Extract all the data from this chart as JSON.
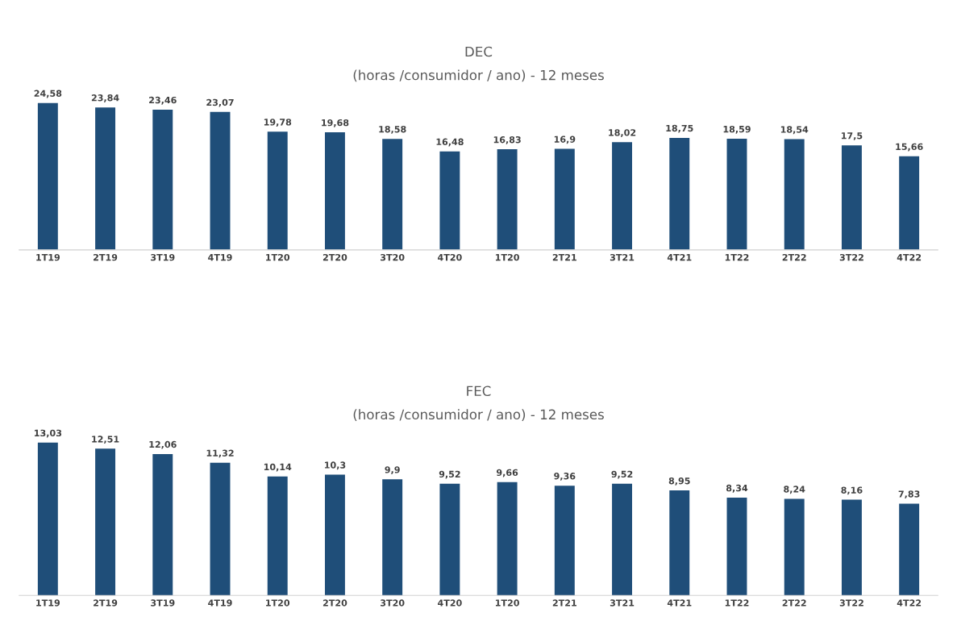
{
  "chart_data": [
    {
      "type": "bar",
      "title": "DEC",
      "subtitle": "(horas /consumidor / ano) - 12 meses",
      "categories": [
        "1T19",
        "2T19",
        "3T19",
        "4T19",
        "1T20",
        "2T20",
        "3T20",
        "4T20",
        "1T20",
        "2T21",
        "3T21",
        "4T21",
        "1T22",
        "2T22",
        "3T22",
        "4T22"
      ],
      "values": [
        24.58,
        23.84,
        23.46,
        23.07,
        19.78,
        19.68,
        18.58,
        16.48,
        16.83,
        16.9,
        18.02,
        18.75,
        18.59,
        18.54,
        17.5,
        15.66
      ],
      "value_labels": [
        "24,58",
        "23,84",
        "23,46",
        "23,07",
        "19,78",
        "19,68",
        "18,58",
        "16,48",
        "16,83",
        "16,9",
        "18,02",
        "18,75",
        "18,59",
        "18,54",
        "17,5",
        "15,66"
      ],
      "color": "#1f4e79",
      "tick_labels": "x",
      "grid": false,
      "legend": false
    },
    {
      "type": "bar",
      "title": "FEC",
      "subtitle": "(horas /consumidor / ano) - 12 meses",
      "categories": [
        "1T19",
        "2T19",
        "3T19",
        "4T19",
        "1T20",
        "2T20",
        "3T20",
        "4T20",
        "1T20",
        "2T21",
        "3T21",
        "4T21",
        "1T22",
        "2T22",
        "3T22",
        "4T22"
      ],
      "values": [
        13.03,
        12.51,
        12.06,
        11.32,
        10.14,
        10.3,
        9.9,
        9.52,
        9.66,
        9.36,
        9.52,
        8.95,
        8.34,
        8.24,
        8.16,
        7.83
      ],
      "value_labels": [
        "13,03",
        "12,51",
        "12,06",
        "11,32",
        "10,14",
        "10,3",
        "9,9",
        "9,52",
        "9,66",
        "9,36",
        "9,52",
        "8,95",
        "8,34",
        "8,24",
        "8,16",
        "7,83"
      ],
      "color": "#1f4e79",
      "tick_labels": "x",
      "grid": false,
      "legend": false
    }
  ]
}
